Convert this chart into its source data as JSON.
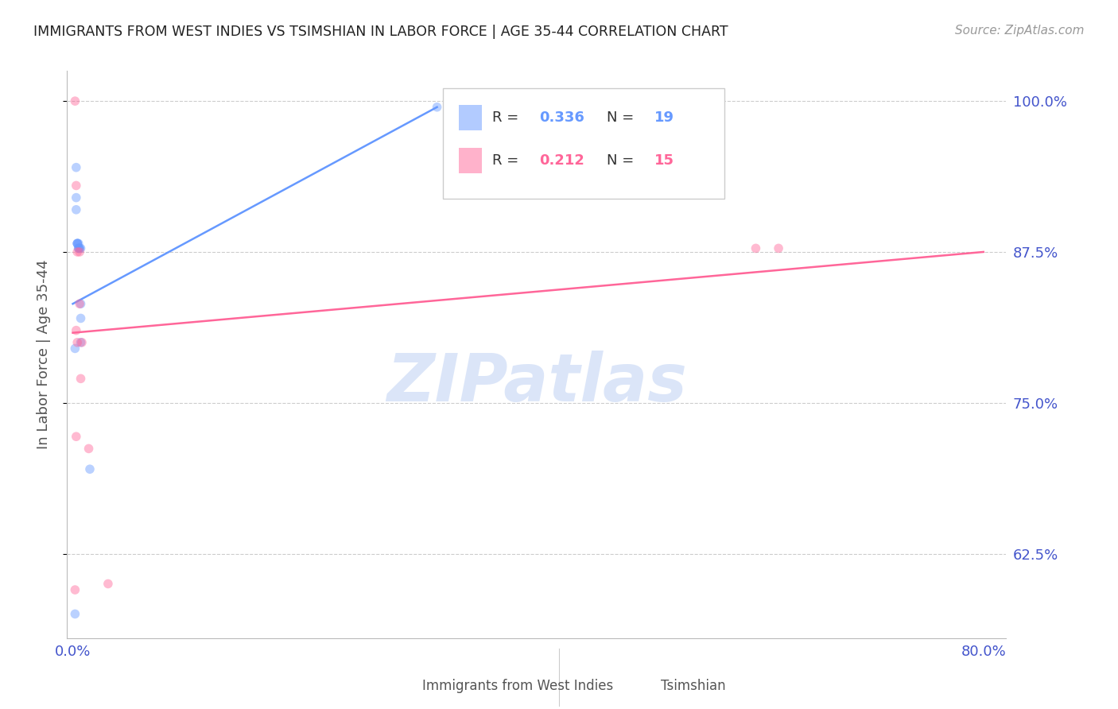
{
  "title": "IMMIGRANTS FROM WEST INDIES VS TSIMSHIAN IN LABOR FORCE | AGE 35-44 CORRELATION CHART",
  "source": "Source: ZipAtlas.com",
  "ylabel": "In Labor Force | Age 35-44",
  "legend_label_blue": "Immigrants from West Indies",
  "legend_label_pink": "Tsimshian",
  "R_blue": 0.336,
  "N_blue": 19,
  "R_pink": 0.212,
  "N_pink": 15,
  "blue_color": "#6699ff",
  "pink_color": "#ff6699",
  "xlim": [
    -0.005,
    0.82
  ],
  "ylim": [
    0.555,
    1.025
  ],
  "yticks": [
    0.625,
    0.75,
    0.875,
    1.0
  ],
  "ytick_labels": [
    "62.5%",
    "75.0%",
    "87.5%",
    "100.0%"
  ],
  "xticks": [
    0.0,
    0.1,
    0.2,
    0.3,
    0.4,
    0.5,
    0.6,
    0.7,
    0.8
  ],
  "blue_x": [
    0.002,
    0.002,
    0.003,
    0.003,
    0.003,
    0.004,
    0.004,
    0.004,
    0.005,
    0.005,
    0.005,
    0.006,
    0.006,
    0.007,
    0.007,
    0.007,
    0.007,
    0.015,
    0.32
  ],
  "blue_y": [
    0.575,
    0.795,
    0.92,
    0.945,
    0.91,
    0.882,
    0.882,
    0.882,
    0.882,
    0.878,
    0.878,
    0.878,
    0.878,
    0.878,
    0.832,
    0.82,
    0.8,
    0.695,
    0.995
  ],
  "pink_x": [
    0.002,
    0.003,
    0.004,
    0.004,
    0.006,
    0.006,
    0.007,
    0.008,
    0.014,
    0.031,
    0.6,
    0.62,
    0.002,
    0.003,
    0.003
  ],
  "pink_y": [
    0.595,
    0.722,
    0.8,
    0.875,
    0.875,
    0.832,
    0.77,
    0.8,
    0.712,
    0.6,
    0.878,
    0.878,
    1.0,
    0.93,
    0.81
  ],
  "blue_trendline_x": [
    0.0,
    0.32
  ],
  "blue_trendline_y": [
    0.832,
    0.995
  ],
  "pink_trendline_x": [
    0.0,
    0.8
  ],
  "pink_trendline_y": [
    0.808,
    0.875
  ],
  "watermark_text": "ZIPatlas",
  "grid_color": "#cccccc",
  "title_color": "#222222",
  "axis_tick_color": "#4455cc",
  "scatter_alpha": 0.45,
  "scatter_size": 70,
  "line_width": 1.8
}
